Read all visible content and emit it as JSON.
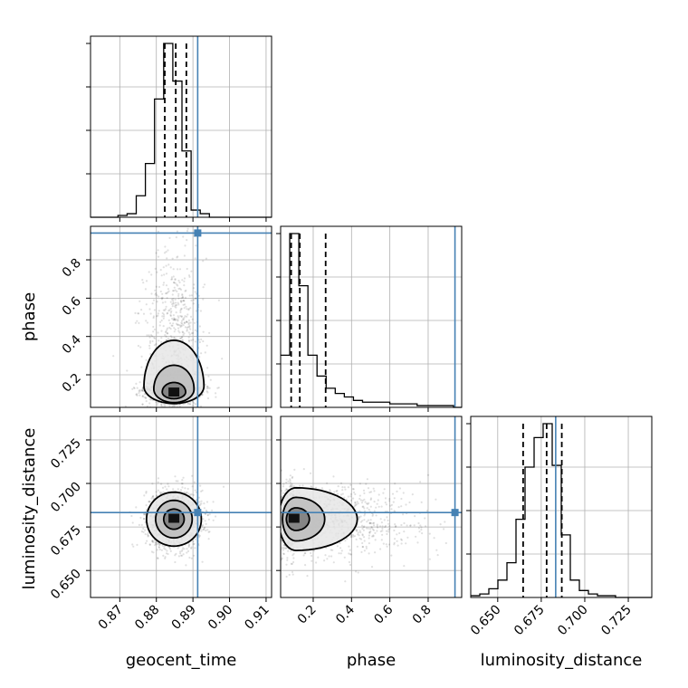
{
  "chart_data": {
    "type": "corner",
    "parameters": [
      "geocent_time",
      "phase",
      "luminosity_distance"
    ],
    "truths": {
      "geocent_time": 0.8913,
      "phase": 0.94,
      "luminosity_distance": 0.6833
    },
    "quantiles": {
      "geocent_time": [
        0.8823,
        0.8853,
        0.8882
      ],
      "phase": [
        0.085,
        0.13,
        0.265
      ],
      "luminosity_distance": [
        0.6646,
        0.6781,
        0.6868
      ]
    },
    "ranges": {
      "geocent_time": [
        0.862,
        0.9115
      ],
      "phase": [
        0.03,
        0.975
      ],
      "luminosity_distance": [
        0.6345,
        0.7385
      ]
    },
    "ticks": {
      "geocent_time": {
        "values": [
          0.87,
          0.88,
          0.89,
          0.9,
          0.91
        ],
        "labels": [
          "0.87",
          "0.88",
          "0.89",
          "0.90",
          "0.91"
        ]
      },
      "phase": {
        "values": [
          0.2,
          0.4,
          0.6,
          0.8
        ],
        "labels": [
          "0.2",
          "0.4",
          "0.6",
          "0.8"
        ]
      },
      "luminosity_distance": {
        "values": [
          0.65,
          0.675,
          0.7,
          0.725
        ],
        "labels": [
          "0.650",
          "0.675",
          "0.700",
          "0.725"
        ]
      }
    },
    "histograms": {
      "geocent_time": {
        "edges": [
          0.862,
          0.8645,
          0.867,
          0.8695,
          0.872,
          0.8745,
          0.877,
          0.8795,
          0.882,
          0.8845,
          0.887,
          0.8895,
          0.892,
          0.8945,
          0.897,
          0.8995,
          0.902,
          0.9045,
          0.907,
          0.9095,
          0.912
        ],
        "counts": [
          0,
          0,
          0,
          1,
          2,
          12,
          30,
          66,
          97,
          76,
          37,
          4,
          2,
          0,
          0,
          0,
          0,
          0,
          0,
          0
        ]
      },
      "phase": {
        "edges": [
          0.03,
          0.0775,
          0.125,
          0.1725,
          0.22,
          0.2675,
          0.315,
          0.3625,
          0.41,
          0.4575,
          0.505,
          0.5525,
          0.6,
          0.6475,
          0.695,
          0.7425,
          0.79,
          0.8375,
          0.885,
          0.9325,
          0.98
        ],
        "counts": [
          30,
          100,
          70,
          30,
          18,
          11,
          8,
          6,
          4,
          3,
          3,
          3,
          2,
          2,
          2,
          1,
          1,
          1,
          1,
          0
        ]
      },
      "luminosity_distance": {
        "edges": [
          0.6345,
          0.6397,
          0.6449,
          0.6501,
          0.6553,
          0.6605,
          0.6657,
          0.6709,
          0.6761,
          0.6813,
          0.6865,
          0.6917,
          0.6969,
          0.7021,
          0.7073,
          0.7125,
          0.7177,
          0.7229,
          0.7281,
          0.7333,
          0.7385
        ],
        "counts": [
          1,
          2,
          5,
          10,
          20,
          45,
          75,
          92,
          100,
          76,
          36,
          10,
          4,
          2,
          1,
          1,
          0,
          0,
          0,
          0
        ]
      }
    },
    "contours": [
      {
        "x": "geocent_time",
        "y": "phase",
        "mode": {
          "x": 0.8848,
          "y": 0.11
        },
        "levels": [
          {
            "cx": 0.8848,
            "cy": 0.14,
            "rx": 0.0082,
            "ry_up": 0.24,
            "ry_down": 0.09
          },
          {
            "cx": 0.8848,
            "cy": 0.125,
            "rx": 0.0055,
            "ry_up": 0.125,
            "ry_down": 0.07
          },
          {
            "cx": 0.8848,
            "cy": 0.11,
            "rx": 0.0032,
            "ry_up": 0.05,
            "ry_down": 0.035
          }
        ]
      },
      {
        "x": "geocent_time",
        "y": "luminosity_distance",
        "mode": {
          "x": 0.8848,
          "y": 0.68
        },
        "levels": [
          {
            "cx": 0.8848,
            "cy": 0.6795,
            "rx": 0.0075,
            "ry_up": 0.0155,
            "ry_down": 0.0155
          },
          {
            "cx": 0.8848,
            "cy": 0.6795,
            "rx": 0.005,
            "ry_up": 0.0108,
            "ry_down": 0.0108
          },
          {
            "cx": 0.8848,
            "cy": 0.6795,
            "rx": 0.0028,
            "ry_up": 0.0058,
            "ry_down": 0.0058
          }
        ]
      },
      {
        "x": "phase",
        "y": "luminosity_distance",
        "mode": {
          "x": 0.1,
          "y": 0.68
        },
        "levels": [
          {
            "cx": 0.11,
            "cy": 0.6795,
            "rx_left": 0.09,
            "rx_right": 0.32,
            "ry": 0.018
          },
          {
            "cx": 0.11,
            "cy": 0.6795,
            "rx_left": 0.07,
            "rx_right": 0.15,
            "ry": 0.0125
          },
          {
            "cx": 0.11,
            "cy": 0.6795,
            "rx_left": 0.05,
            "rx_right": 0.07,
            "ry": 0.0065
          }
        ]
      }
    ],
    "grid": true,
    "legend": "none"
  }
}
